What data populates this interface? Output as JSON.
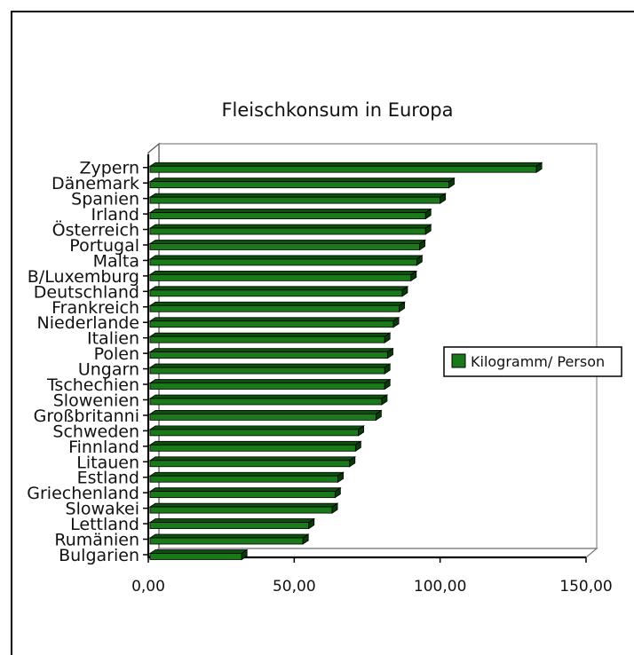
{
  "chart_data": {
    "type": "bar",
    "orientation": "horizontal",
    "title": "Fleischkonsum in Europa",
    "categories": [
      "Zypern",
      "Dänemark",
      "Spanien",
      "Irland",
      "Österreich",
      "Portugal",
      "Malta",
      "B/Luxemburg",
      "Deutschland",
      "Frankreich",
      "Niederlande",
      "Italien",
      "Polen",
      "Ungarn",
      "Tschechien",
      "Slowenien",
      "Großbritanni",
      "Schweden",
      "Finnland",
      "Litauen",
      "Estland",
      "Griechenland",
      "Slowakei",
      "Lettland",
      "Rumänien",
      "Bulgarien"
    ],
    "series": [
      {
        "name": "Kilogramm/ Person",
        "color": "#1a7a1a",
        "values": [
          133,
          103,
          100,
          95,
          95,
          93,
          92,
          90,
          87,
          86,
          84,
          81,
          82,
          81,
          81,
          80,
          78,
          72,
          71,
          69,
          65,
          64,
          63,
          55,
          53,
          32
        ]
      }
    ],
    "x_ticks": [
      "0,00",
      "50,00",
      "100,00",
      "150,00"
    ],
    "xlim": [
      0,
      150
    ],
    "legend_position": "right",
    "grid": false,
    "style": "3d"
  }
}
